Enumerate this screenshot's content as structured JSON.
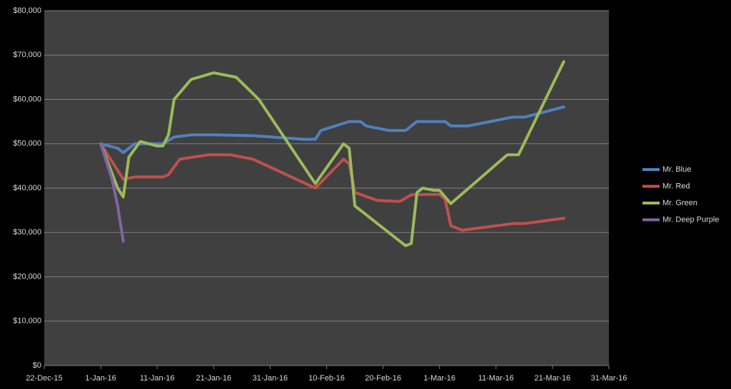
{
  "chart_data": {
    "type": "line",
    "ylim": [
      0,
      80000
    ],
    "yticks": [
      {
        "value": 0,
        "label": "$0"
      },
      {
        "value": 10000,
        "label": "$10,000"
      },
      {
        "value": 20000,
        "label": "$20,000"
      },
      {
        "value": 30000,
        "label": "$30,000"
      },
      {
        "value": 40000,
        "label": "$40,000"
      },
      {
        "value": 50000,
        "label": "$50,000"
      },
      {
        "value": 60000,
        "label": "$60,000"
      },
      {
        "value": 70000,
        "label": "$70,000"
      },
      {
        "value": 80000,
        "label": "$80,000"
      }
    ],
    "xlim": [
      "2015-12-22",
      "2016-03-31"
    ],
    "xticks": [
      {
        "value": "2015-12-22",
        "label": "22-Dec-15"
      },
      {
        "value": "2016-01-01",
        "label": "1-Jan-16"
      },
      {
        "value": "2016-01-11",
        "label": "11-Jan-16"
      },
      {
        "value": "2016-01-21",
        "label": "21-Jan-16"
      },
      {
        "value": "2016-01-31",
        "label": "31-Jan-16"
      },
      {
        "value": "2016-02-10",
        "label": "10-Feb-16"
      },
      {
        "value": "2016-02-20",
        "label": "20-Feb-16"
      },
      {
        "value": "2016-03-01",
        "label": "1-Mar-16"
      },
      {
        "value": "2016-03-11",
        "label": "11-Mar-16"
      },
      {
        "value": "2016-03-21",
        "label": "21-Mar-16"
      },
      {
        "value": "2016-03-31",
        "label": "31-Mar-16"
      }
    ],
    "grid": true,
    "legend": "right",
    "series": [
      {
        "name": "Mr. Blue",
        "color": "#4f81bd",
        "x": [
          "2016-01-01",
          "2016-01-04",
          "2016-01-05",
          "2016-01-07",
          "2016-01-12",
          "2016-01-14",
          "2016-01-17",
          "2016-01-21",
          "2016-01-28",
          "2016-02-06",
          "2016-02-08",
          "2016-02-09",
          "2016-02-14",
          "2016-02-16",
          "2016-02-17",
          "2016-02-21",
          "2016-02-24",
          "2016-02-26",
          "2016-02-29",
          "2016-03-02",
          "2016-03-03",
          "2016-03-06",
          "2016-03-14",
          "2016-03-16",
          "2016-03-23"
        ],
        "values": [
          50000,
          49000,
          48000,
          50000,
          50000,
          51500,
          52000,
          52000,
          51800,
          51000,
          51000,
          53000,
          55000,
          55000,
          54000,
          53000,
          53000,
          55000,
          55000,
          55000,
          54000,
          54000,
          56000,
          56000,
          58300
        ]
      },
      {
        "name": "Mr. Red",
        "color": "#c0504d",
        "x": [
          "2016-01-01",
          "2016-01-04",
          "2016-01-05",
          "2016-01-07",
          "2016-01-12",
          "2016-01-13",
          "2016-01-15",
          "2016-01-20",
          "2016-01-24",
          "2016-01-28",
          "2016-02-08",
          "2016-02-13",
          "2016-02-14",
          "2016-02-15",
          "2016-02-19",
          "2016-02-23",
          "2016-02-25",
          "2016-03-01",
          "2016-03-02",
          "2016-03-03",
          "2016-03-05",
          "2016-03-14",
          "2016-03-16",
          "2016-03-23"
        ],
        "values": [
          50000,
          44000,
          42000,
          42500,
          42500,
          43000,
          46500,
          47500,
          47500,
          46500,
          40000,
          46500,
          45500,
          39000,
          37200,
          37000,
          38500,
          38600,
          37500,
          31500,
          30500,
          32000,
          32000,
          33200
        ]
      },
      {
        "name": "Mr. Green",
        "color": "#9bbb59",
        "x": [
          "2016-01-01",
          "2016-01-04",
          "2016-01-05",
          "2016-01-06",
          "2016-01-08",
          "2016-01-11",
          "2016-01-12",
          "2016-01-13",
          "2016-01-14",
          "2016-01-17",
          "2016-01-21",
          "2016-01-25",
          "2016-01-29",
          "2016-02-08",
          "2016-02-13",
          "2016-02-14",
          "2016-02-15",
          "2016-02-24",
          "2016-02-25",
          "2016-02-26",
          "2016-02-27",
          "2016-02-29",
          "2016-03-01",
          "2016-03-02",
          "2016-03-03",
          "2016-03-13",
          "2016-03-15",
          "2016-03-23"
        ],
        "values": [
          50000,
          40000,
          38000,
          47000,
          50500,
          49500,
          49500,
          52000,
          60000,
          64500,
          66000,
          65000,
          60000,
          41000,
          50000,
          49000,
          36000,
          27000,
          27500,
          39000,
          40000,
          39500,
          39500,
          38000,
          36500,
          47500,
          47500,
          68500
        ]
      },
      {
        "name": "Mr. Deep Purple",
        "color": "#8064a2",
        "x": [
          "2016-01-01",
          "2016-01-03",
          "2016-01-04",
          "2016-01-05"
        ],
        "values": [
          50000,
          42000,
          36000,
          28000
        ]
      }
    ]
  }
}
